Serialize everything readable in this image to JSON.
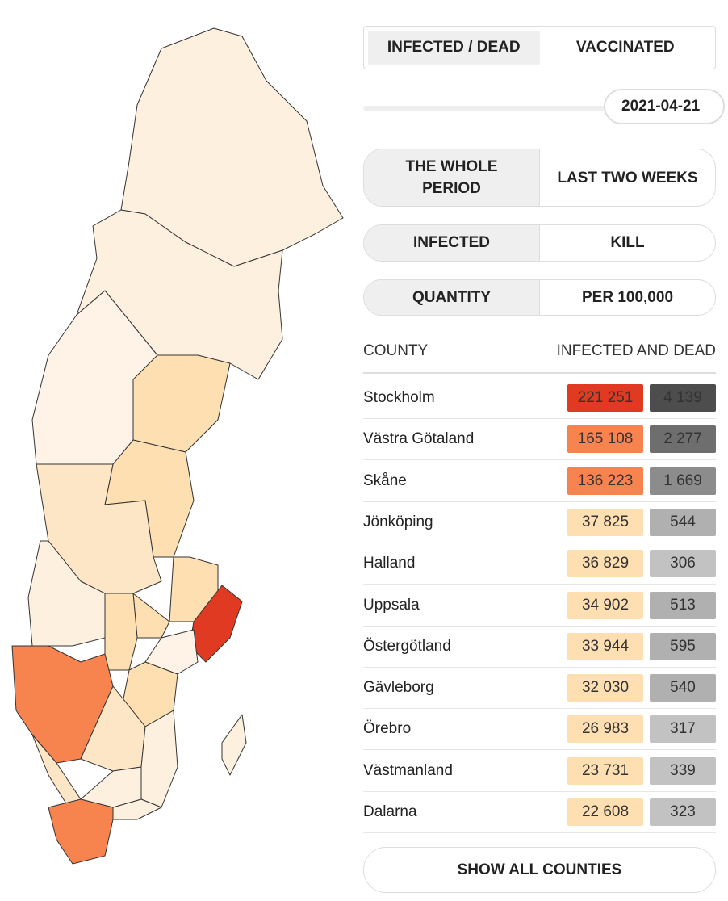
{
  "tabs": [
    "INFECTED / DEAD",
    "VACCINATED"
  ],
  "date": "2021-04-21",
  "period_toggle": [
    "THE WHOLE PERIOD",
    "LAST TWO WEEKS"
  ],
  "metric_toggle": [
    "INFECTED",
    "KILL"
  ],
  "unit_toggle": [
    "QUANTITY",
    "PER 100,000"
  ],
  "table": {
    "headers": [
      "COUNTY",
      "INFECTED AND DEAD"
    ],
    "rows": [
      {
        "county": "Stockholm",
        "infected": "221 251",
        "dead": "4 139",
        "infected_color": "#e03b22",
        "dead_color": "#4d4d4d"
      },
      {
        "county": "Västra Götaland",
        "infected": "165 108",
        "dead": "2 277",
        "infected_color": "#f7834f",
        "dead_color": "#6e6e6e"
      },
      {
        "county": "Skåne",
        "infected": "136 223",
        "dead": "1 669",
        "infected_color": "#f7834f",
        "dead_color": "#8c8c8c"
      },
      {
        "county": "Jönköping",
        "infected": "37 825",
        "dead": "544",
        "infected_color": "#fddfb2",
        "dead_color": "#b0b0b0"
      },
      {
        "county": "Halland",
        "infected": "36 829",
        "dead": "306",
        "infected_color": "#fddfb2",
        "dead_color": "#c2c2c2"
      },
      {
        "county": "Uppsala",
        "infected": "34 902",
        "dead": "513",
        "infected_color": "#fddfb2",
        "dead_color": "#b0b0b0"
      },
      {
        "county": "Östergötland",
        "infected": "33 944",
        "dead": "595",
        "infected_color": "#fddfb2",
        "dead_color": "#b0b0b0"
      },
      {
        "county": "Gävleborg",
        "infected": "32 030",
        "dead": "540",
        "infected_color": "#fddfb2",
        "dead_color": "#b0b0b0"
      },
      {
        "county": "Örebro",
        "infected": "26 983",
        "dead": "317",
        "infected_color": "#fddfb2",
        "dead_color": "#c2c2c2"
      },
      {
        "county": "Västmanland",
        "infected": "23 731",
        "dead": "339",
        "infected_color": "#fddfb2",
        "dead_color": "#c2c2c2"
      },
      {
        "county": "Dalarna",
        "infected": "22 608",
        "dead": "323",
        "infected_color": "#fddfb2",
        "dead_color": "#c2c2c2"
      }
    ]
  },
  "button": "SHOW ALL COUNTIES"
}
